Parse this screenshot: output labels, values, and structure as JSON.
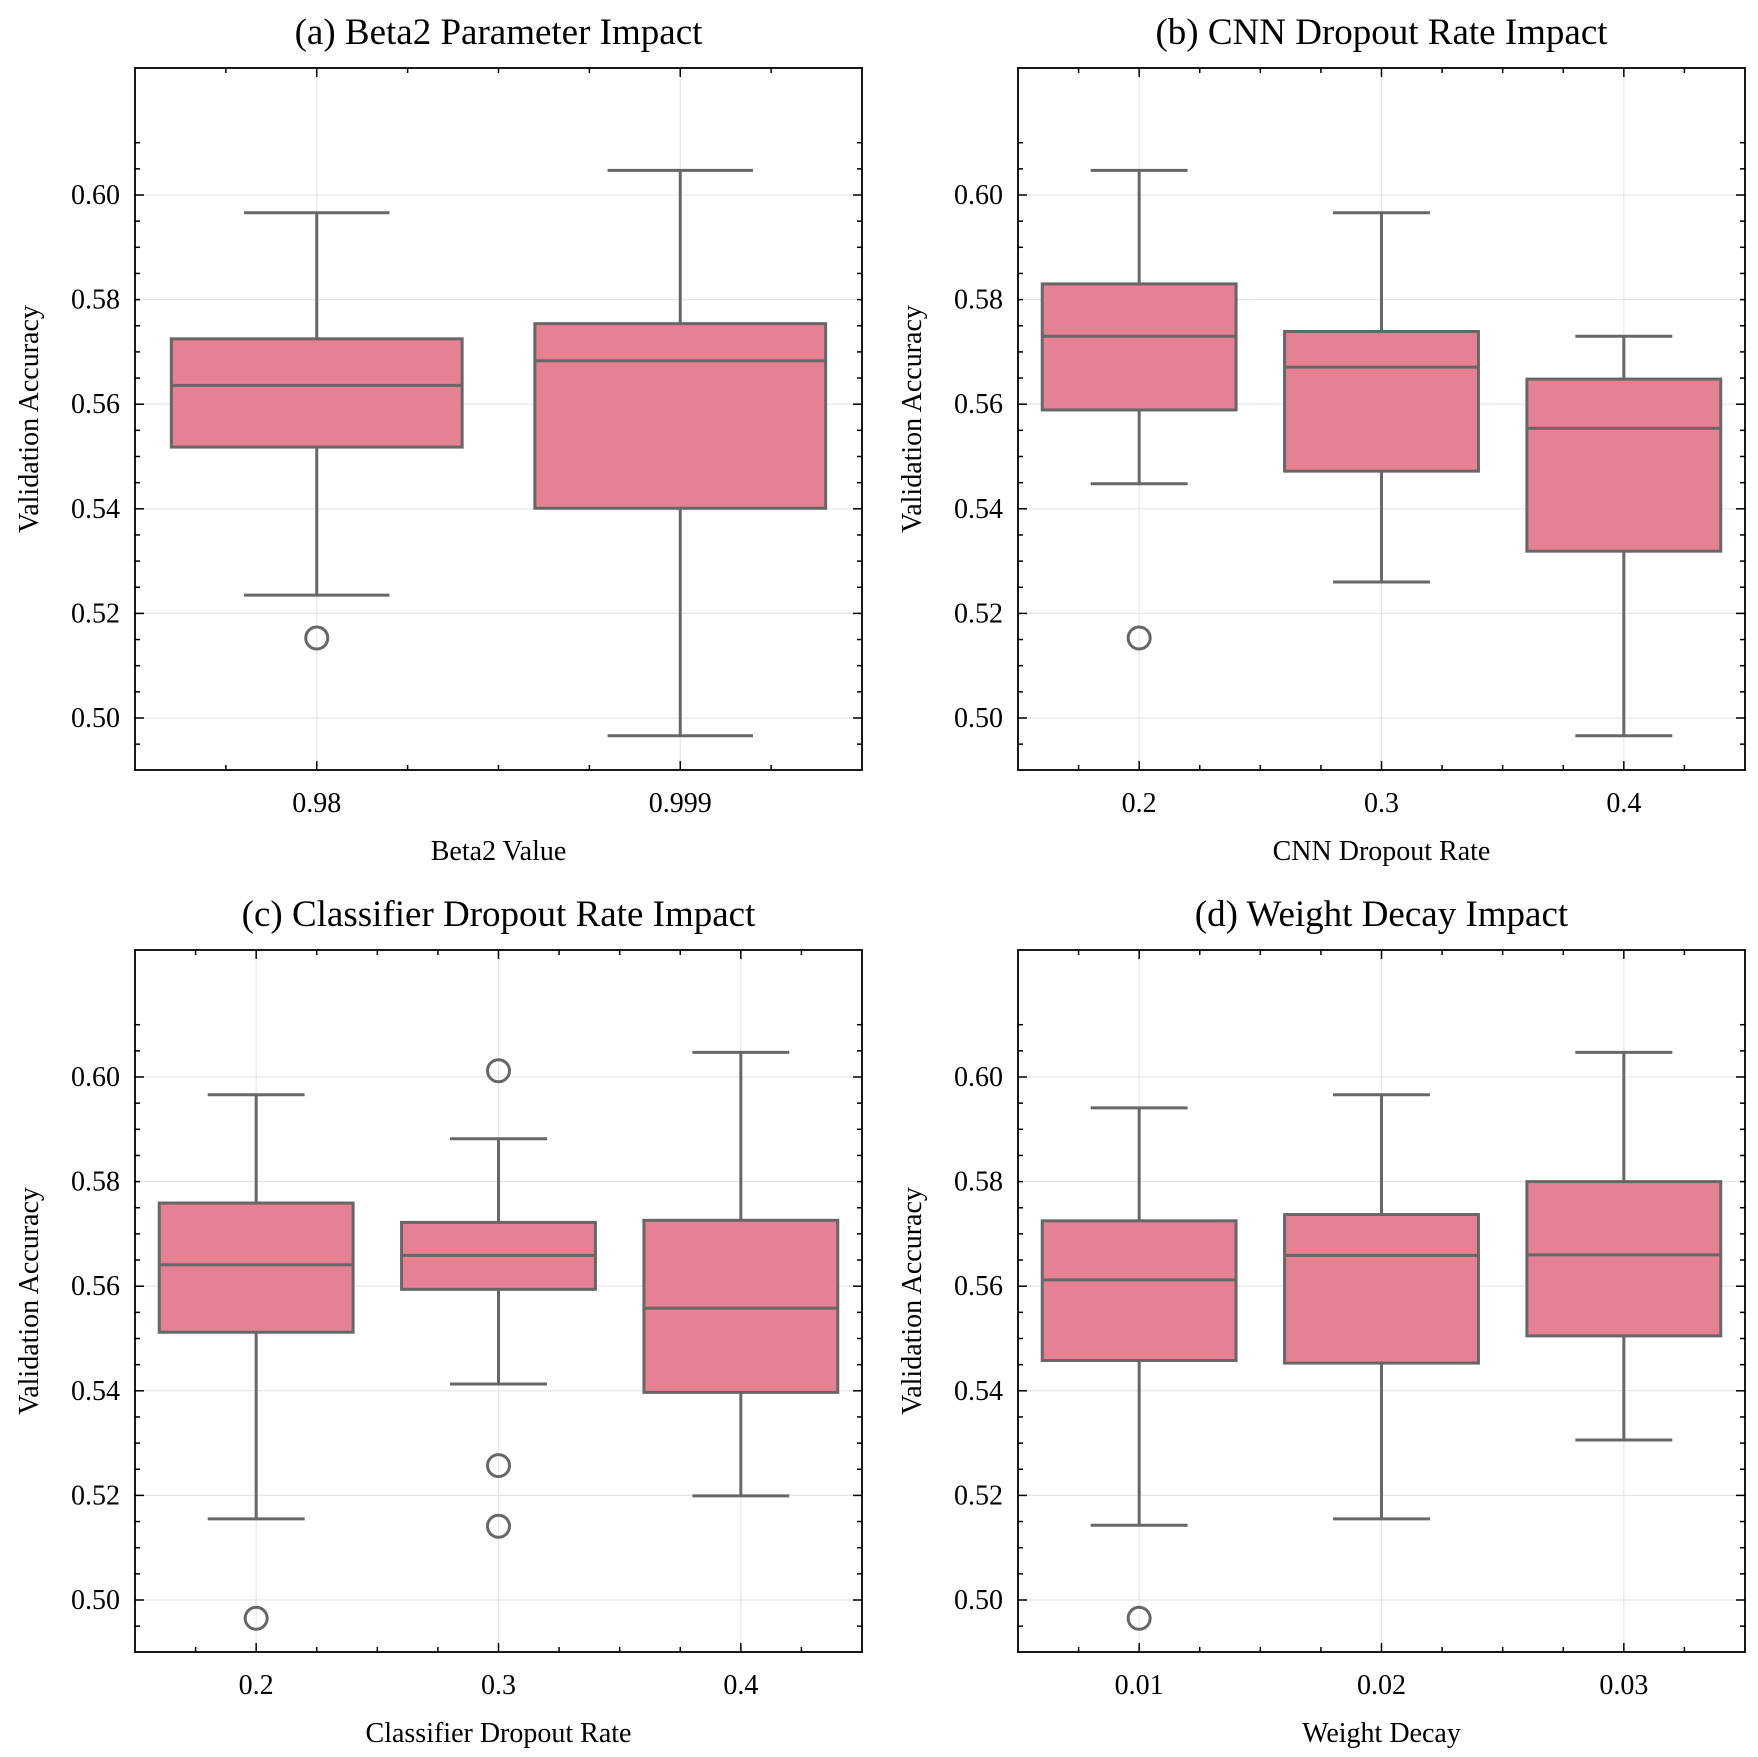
{
  "chart_data": [
    {
      "type": "box",
      "title": "(a) Beta2 Parameter Impact",
      "xlabel": "Beta2 Value",
      "ylabel": "Validation Accuracy",
      "ylim": [
        0.491,
        0.61
      ],
      "yticks": [
        "0.50",
        "0.52",
        "0.54",
        "0.56",
        "0.58",
        "0.60"
      ],
      "grid": true,
      "categories": [
        "0.98",
        "0.999"
      ],
      "boxes": [
        {
          "whisker_low": 0.5235,
          "q1": 0.5518,
          "median": 0.5636,
          "q3": 0.5725,
          "whisker_high": 0.5966,
          "outliers": [
            0.5153
          ]
        },
        {
          "whisker_low": 0.4966,
          "q1": 0.5401,
          "median": 0.5683,
          "q3": 0.5754,
          "whisker_high": 0.6047,
          "outliers": []
        }
      ]
    },
    {
      "type": "box",
      "title": "(b) CNN Dropout Rate Impact",
      "xlabel": "CNN Dropout Rate",
      "ylabel": "Validation Accuracy",
      "ylim": [
        0.491,
        0.61
      ],
      "yticks": [
        "0.50",
        "0.52",
        "0.54",
        "0.56",
        "0.58",
        "0.60"
      ],
      "grid": true,
      "categories": [
        "0.2",
        "0.3",
        "0.4"
      ],
      "boxes": [
        {
          "whisker_low": 0.5448,
          "q1": 0.5589,
          "median": 0.573,
          "q3": 0.583,
          "whisker_high": 0.6047,
          "outliers": [
            0.5153
          ]
        },
        {
          "whisker_low": 0.526,
          "q1": 0.5472,
          "median": 0.5671,
          "q3": 0.5739,
          "whisker_high": 0.5966,
          "outliers": []
        },
        {
          "whisker_low": 0.4966,
          "q1": 0.5319,
          "median": 0.5554,
          "q3": 0.5648,
          "whisker_high": 0.573,
          "outliers": []
        }
      ]
    },
    {
      "type": "box",
      "title": "(c) Classifier Dropout Rate Impact",
      "xlabel": "Classifier Dropout Rate",
      "ylabel": "Validation Accuracy",
      "ylim": [
        0.491,
        0.61
      ],
      "yticks": [
        "0.50",
        "0.52",
        "0.54",
        "0.56",
        "0.58",
        "0.60"
      ],
      "grid": true,
      "categories": [
        "0.2",
        "0.3",
        "0.4"
      ],
      "boxes": [
        {
          "whisker_low": 0.5155,
          "q1": 0.5512,
          "median": 0.5641,
          "q3": 0.5759,
          "whisker_high": 0.5966,
          "outliers": [
            0.4965
          ]
        },
        {
          "whisker_low": 0.5413,
          "q1": 0.5594,
          "median": 0.5659,
          "q3": 0.5722,
          "whisker_high": 0.5882,
          "outliers": [
            0.6012,
            0.5257,
            0.5141
          ]
        },
        {
          "whisker_low": 0.5199,
          "q1": 0.5397,
          "median": 0.5558,
          "q3": 0.5726,
          "whisker_high": 0.6047,
          "outliers": []
        }
      ]
    },
    {
      "type": "box",
      "title": "(d) Weight Decay Impact",
      "xlabel": "Weight Decay",
      "ylabel": "Validation Accuracy",
      "ylim": [
        0.491,
        0.61
      ],
      "yticks": [
        "0.50",
        "0.52",
        "0.54",
        "0.56",
        "0.58",
        "0.60"
      ],
      "grid": true,
      "categories": [
        "0.01",
        "0.02",
        "0.03"
      ],
      "boxes": [
        {
          "whisker_low": 0.5143,
          "q1": 0.5458,
          "median": 0.5612,
          "q3": 0.5725,
          "whisker_high": 0.5941,
          "outliers": [
            0.4965
          ]
        },
        {
          "whisker_low": 0.5155,
          "q1": 0.5453,
          "median": 0.5659,
          "q3": 0.5737,
          "whisker_high": 0.5966,
          "outliers": []
        },
        {
          "whisker_low": 0.5306,
          "q1": 0.5505,
          "median": 0.566,
          "q3": 0.58,
          "whisker_high": 0.6047,
          "outliers": []
        }
      ]
    }
  ],
  "style": {
    "box_fill": "#E68193",
    "line_color": "#676767",
    "grid_color": "#E6E6E6"
  }
}
